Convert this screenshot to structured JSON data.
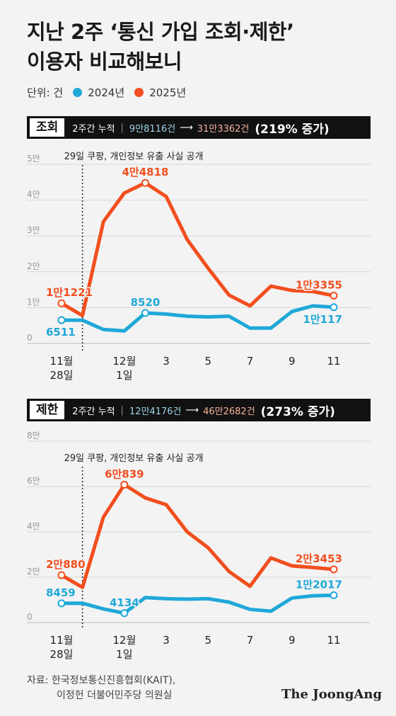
{
  "title_line1": "지난 2주 ‘통신 가입 조회·제한’",
  "title_line2": "이용자 비교해보니",
  "unit": "단위: 건",
  "legend": [
    {
      "label": "2024년",
      "color": "#1fa8d8"
    },
    {
      "label": "2025년",
      "color": "#f24e1e"
    }
  ],
  "source_line1": "자료: 한국정보통신진흥협회(KAIT),",
  "source_line2": "이정헌 더불어민주당 의원실",
  "brand": "The JoongAng",
  "chart_data": [
    {
      "type": "line",
      "panel_label": "조회",
      "summary_prefix": "2주간 누적",
      "summary_2024": "9만8116건",
      "summary_2025": "31만3362건",
      "summary_pct": "(219% 증가)",
      "annotation": "29일 쿠팡, 개인정보 유출 사실 공개",
      "x": [
        "11/28",
        "11/29",
        "11/30",
        "12/1",
        "12/2",
        "12/3",
        "12/4",
        "12/5",
        "12/6",
        "12/7",
        "12/8",
        "12/9",
        "12/10",
        "12/11"
      ],
      "xticks": [
        {
          "index": 0,
          "label": "11월",
          "label2": "28일"
        },
        {
          "index": 3,
          "label": "12월",
          "label2": "1일"
        },
        {
          "index": 5,
          "label": "3",
          "label2": ""
        },
        {
          "index": 7,
          "label": "5",
          "label2": ""
        },
        {
          "index": 9,
          "label": "7",
          "label2": ""
        },
        {
          "index": 11,
          "label": "9",
          "label2": ""
        },
        {
          "index": 13,
          "label": "11",
          "label2": ""
        }
      ],
      "yticks": [
        {
          "value": 0,
          "label": "0"
        },
        {
          "value": 10000,
          "label": "1만"
        },
        {
          "value": 20000,
          "label": "2만"
        },
        {
          "value": 30000,
          "label": "3만"
        },
        {
          "value": 40000,
          "label": "4만"
        },
        {
          "value": 50000,
          "label": "5만"
        }
      ],
      "ylim": [
        0,
        50000
      ],
      "series": [
        {
          "name": "2024년",
          "color": "#1fa8d8",
          "values": [
            6511,
            6500,
            3900,
            3500,
            8520,
            8200,
            7600,
            7400,
            7600,
            4300,
            4300,
            8900,
            10500,
            10117
          ],
          "labels": [
            {
              "index": 0,
              "text": "6511",
              "pos": "below"
            },
            {
              "index": 4,
              "text": "8520",
              "pos": "above"
            },
            {
              "index": 13,
              "text": "1만117",
              "pos": "below"
            }
          ]
        },
        {
          "name": "2025년",
          "color": "#f24e1e",
          "values": [
            11221,
            7800,
            34000,
            42000,
            44818,
            41000,
            29000,
            21000,
            13500,
            10500,
            16000,
            14800,
            14500,
            13355
          ],
          "labels": [
            {
              "index": 0,
              "text": "1만1221",
              "pos": "above"
            },
            {
              "index": 4,
              "text": "4만4818",
              "pos": "above"
            },
            {
              "index": 13,
              "text": "1만3355",
              "pos": "above"
            }
          ]
        }
      ]
    },
    {
      "type": "line",
      "panel_label": "제한",
      "summary_prefix": "2주간 누적",
      "summary_2024": "12만4176건",
      "summary_2025": "46만2682건",
      "summary_pct": "(273% 증가)",
      "annotation": "29일 쿠팡, 개인정보 유출 사실 공개",
      "x": [
        "11/28",
        "11/29",
        "11/30",
        "12/1",
        "12/2",
        "12/3",
        "12/4",
        "12/5",
        "12/6",
        "12/7",
        "12/8",
        "12/9",
        "12/10",
        "12/11"
      ],
      "xticks": [
        {
          "index": 0,
          "label": "11월",
          "label2": "28일"
        },
        {
          "index": 3,
          "label": "12월",
          "label2": "1일"
        },
        {
          "index": 5,
          "label": "3",
          "label2": ""
        },
        {
          "index": 7,
          "label": "5",
          "label2": ""
        },
        {
          "index": 9,
          "label": "7",
          "label2": ""
        },
        {
          "index": 11,
          "label": "9",
          "label2": ""
        },
        {
          "index": 13,
          "label": "11",
          "label2": ""
        }
      ],
      "yticks": [
        {
          "value": 0,
          "label": "0"
        },
        {
          "value": 20000,
          "label": "2만"
        },
        {
          "value": 40000,
          "label": "4만"
        },
        {
          "value": 60000,
          "label": "6만"
        },
        {
          "value": 80000,
          "label": "8만"
        }
      ],
      "ylim": [
        0,
        80000
      ],
      "series": [
        {
          "name": "2024년",
          "color": "#1fa8d8",
          "values": [
            8459,
            8500,
            6000,
            4134,
            11000,
            10500,
            10300,
            10500,
            9000,
            5800,
            5000,
            10800,
            11800,
            12017
          ],
          "labels": [
            {
              "index": 0,
              "text": "8459",
              "pos": "above"
            },
            {
              "index": 3,
              "text": "4134",
              "pos": "above"
            },
            {
              "index": 13,
              "text": "1만2017",
              "pos": "above"
            }
          ]
        },
        {
          "name": "2025년",
          "color": "#f24e1e",
          "values": [
            20880,
            15500,
            46500,
            60839,
            55000,
            52000,
            40000,
            33000,
            22500,
            16000,
            28500,
            25000,
            24300,
            23453
          ],
          "labels": [
            {
              "index": 0,
              "text": "2만880",
              "pos": "above"
            },
            {
              "index": 3,
              "text": "6만839",
              "pos": "above"
            },
            {
              "index": 13,
              "text": "2만3453",
              "pos": "above"
            }
          ]
        }
      ]
    }
  ]
}
